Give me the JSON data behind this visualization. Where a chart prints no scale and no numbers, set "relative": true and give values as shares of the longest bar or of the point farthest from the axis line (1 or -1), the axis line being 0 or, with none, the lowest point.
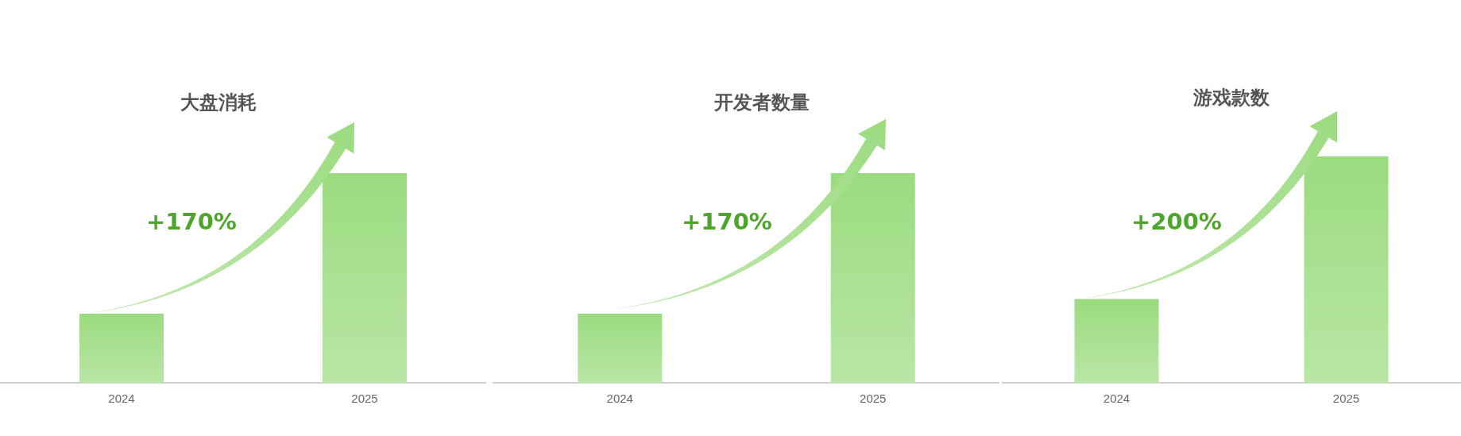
{
  "chart_data": [
    {
      "type": "bar",
      "title": "大盘消耗",
      "categories": [
        "2024",
        "2025"
      ],
      "values": [
        0.33,
        1
      ],
      "color": "#9bdb7f",
      "relative": true,
      "annotations": [
        "+170%"
      ]
    },
    {
      "type": "bar",
      "title": "开发者数量",
      "categories": [
        "2024",
        "2025"
      ],
      "values": [
        0.33,
        1
      ],
      "color": "#9bdb7f",
      "relative": true,
      "annotations": [
        "+170%"
      ]
    },
    {
      "type": "bar",
      "title": "游戏款数",
      "categories": [
        "2024",
        "2025"
      ],
      "values": [
        0.37,
        1
      ],
      "color": "#9bdb7f",
      "relative": true,
      "annotations": [
        "+200%"
      ]
    }
  ]
}
